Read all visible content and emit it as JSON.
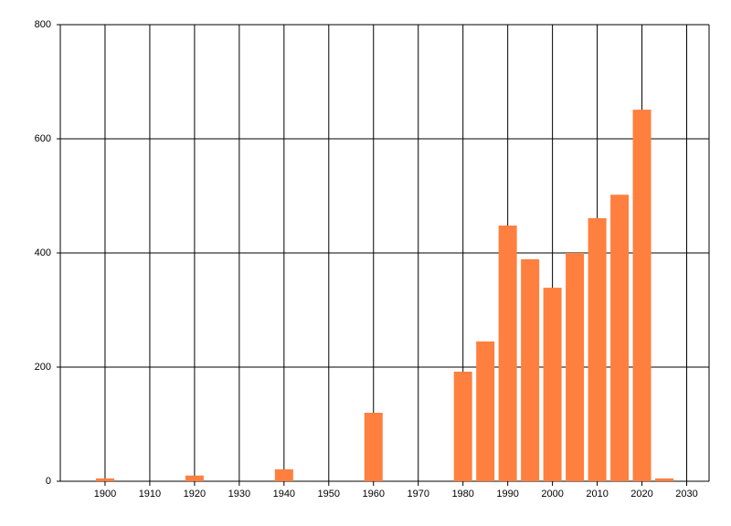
{
  "chart_data": {
    "type": "bar",
    "x": [
      1900,
      1920,
      1940,
      1960,
      1980,
      1985,
      1990,
      1995,
      2000,
      2005,
      2010,
      2015,
      2020,
      2025
    ],
    "values": [
      5,
      10,
      21,
      120,
      192,
      245,
      448,
      389,
      339,
      400,
      461,
      502,
      651,
      5
    ],
    "color": "#ff7f3f",
    "xlim": [
      1890,
      2035
    ],
    "xticks": [
      1900,
      1910,
      1920,
      1930,
      1940,
      1950,
      1960,
      1970,
      1980,
      1990,
      2000,
      2010,
      2020,
      2030
    ],
    "ylim": [
      0,
      800
    ],
    "yticks": [
      0,
      200,
      400,
      600,
      800
    ],
    "grid": true
  }
}
